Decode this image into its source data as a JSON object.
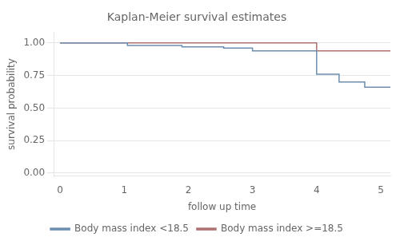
{
  "chart_data": {
    "type": "line",
    "title": "Kaplan-Meier survival estimates",
    "x_label": "follow up time",
    "y_label": "survival probability",
    "xlim": [
      -0.1,
      5.15
    ],
    "ylim": [
      -0.02,
      1.08
    ],
    "xticks": [
      0,
      1,
      2,
      3,
      4,
      5
    ],
    "yticks": [
      {
        "value": 0.0,
        "label": "0.00"
      },
      {
        "value": 0.25,
        "label": "0.25"
      },
      {
        "value": 0.5,
        "label": "0.50"
      },
      {
        "value": 0.75,
        "label": "0.75"
      },
      {
        "value": 1.0,
        "label": "1.00"
      }
    ],
    "grid": "y",
    "legend": "bottom",
    "line_style": "steps",
    "series": [
      {
        "name": "Body mass index <18.5",
        "color": "#6b8eaf",
        "x": [
          0,
          1.05,
          1.05,
          1.9,
          1.9,
          2.55,
          2.55,
          3.0,
          3.0,
          4.0,
          4.0,
          4.35,
          4.35,
          4.75,
          4.75,
          5.15
        ],
        "values": [
          1.0,
          1.0,
          0.98,
          0.98,
          0.97,
          0.97,
          0.96,
          0.96,
          0.94,
          0.94,
          0.76,
          0.76,
          0.7,
          0.7,
          0.66,
          0.66
        ]
      },
      {
        "name": "Body mass index >=18.5",
        "color": "#b07070",
        "x": [
          0,
          4.0,
          4.0,
          5.15
        ],
        "values": [
          1.0,
          1.0,
          0.94,
          0.94
        ]
      }
    ]
  }
}
